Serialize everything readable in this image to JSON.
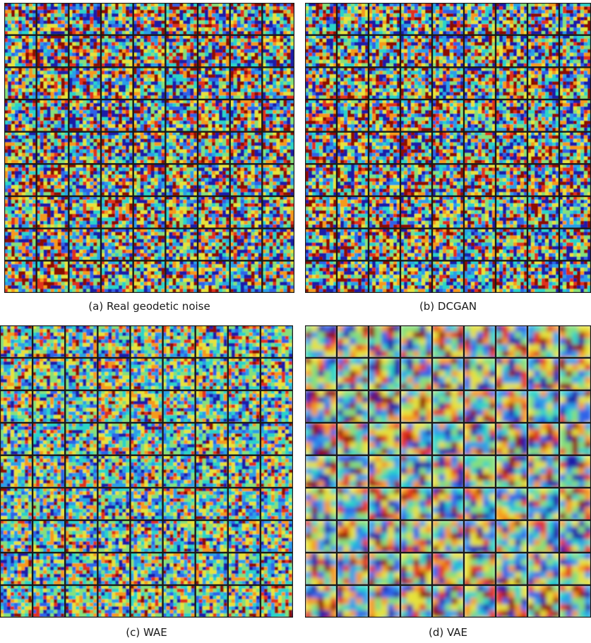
{
  "figure": {
    "panels": [
      {
        "id": "a",
        "caption": "(a) Real geodetic noise",
        "style": "fine"
      },
      {
        "id": "b",
        "caption": "(b) DCGAN",
        "style": "fine"
      },
      {
        "id": "c",
        "caption": "(c) WAE",
        "style": "fine-faint"
      },
      {
        "id": "d",
        "caption": "(d) VAE",
        "style": "smooth"
      }
    ],
    "grid": {
      "rows": 9,
      "cols": 9
    },
    "colormap": [
      "#1c1aa8",
      "#2f63e8",
      "#2a9fe8",
      "#2ad4c8",
      "#86e07a",
      "#e6e23a",
      "#f59a1c",
      "#e0321a",
      "#8c0b06"
    ]
  }
}
